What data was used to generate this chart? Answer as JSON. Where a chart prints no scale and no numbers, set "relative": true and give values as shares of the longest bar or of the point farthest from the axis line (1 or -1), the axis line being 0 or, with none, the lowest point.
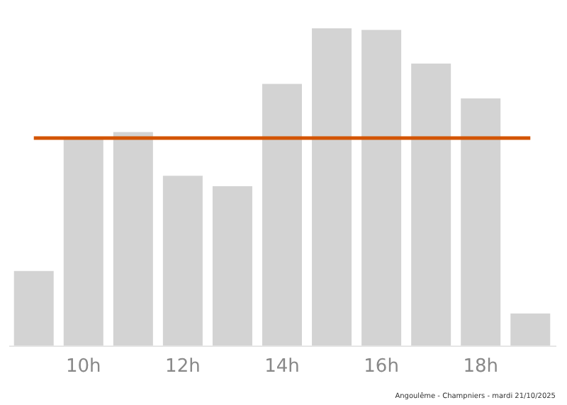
{
  "chart_data": {
    "type": "bar",
    "relative": true,
    "categories": [
      null,
      "10h",
      null,
      "12h",
      null,
      "14h",
      null,
      "16h",
      null,
      "18h",
      null
    ],
    "values": [
      0.235,
      0.654,
      0.673,
      0.535,
      0.502,
      0.825,
      1,
      0.995,
      0.889,
      0.779,
      0.101
    ],
    "color": "#d3d3d3",
    "ref_lines": [
      {
        "axis": "y",
        "value": 0.654,
        "color": "#d35400"
      }
    ],
    "annotations": [
      "Angoulême - Champniers - mardi 21/10/2025"
    ],
    "grid": false
  }
}
